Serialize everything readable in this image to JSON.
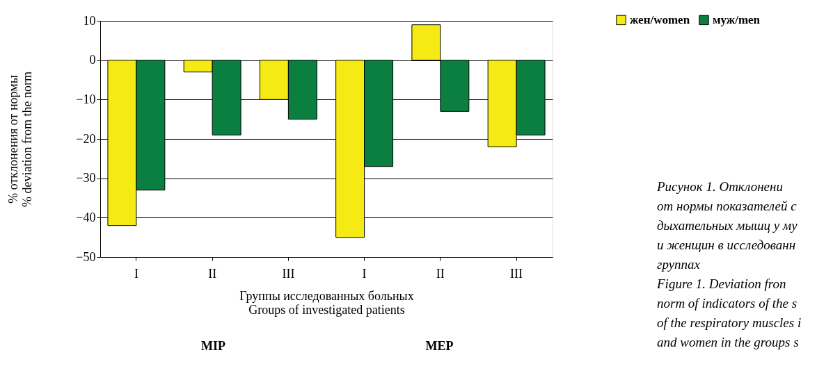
{
  "chart_data": {
    "type": "bar",
    "categories": [
      "I",
      "II",
      "III",
      "I",
      "II",
      "III"
    ],
    "series": [
      {
        "name": "жен/women",
        "color": "#f5ea14",
        "values": [
          -42,
          -3,
          -10,
          -45,
          9,
          -22
        ]
      },
      {
        "name": "муж/men",
        "color": "#0a7f3f",
        "values": [
          -33,
          -19,
          -15,
          -27,
          -13,
          -19
        ]
      }
    ],
    "ylim": [
      -50,
      10
    ],
    "yticks": [
      -50,
      -40,
      -30,
      -20,
      -10,
      0,
      10
    ],
    "ylabel": "% отклонения от нормы\n% deviation from the norm",
    "xlabel": "Группы исследованных больных\nGroups of investigated patients",
    "grid": "y",
    "legend": "top right",
    "annotations": [
      "MIP",
      "MEP",
      "Рисунок 1. Отклонени",
      "от нормы показателей с",
      "дыхательных мышц у му",
      "и женщин в исследованн",
      "группах",
      "Figure 1. Deviation fron",
      "norm of indicators of the s",
      "of the respiratory muscles i",
      "and women in the groups s"
    ]
  }
}
